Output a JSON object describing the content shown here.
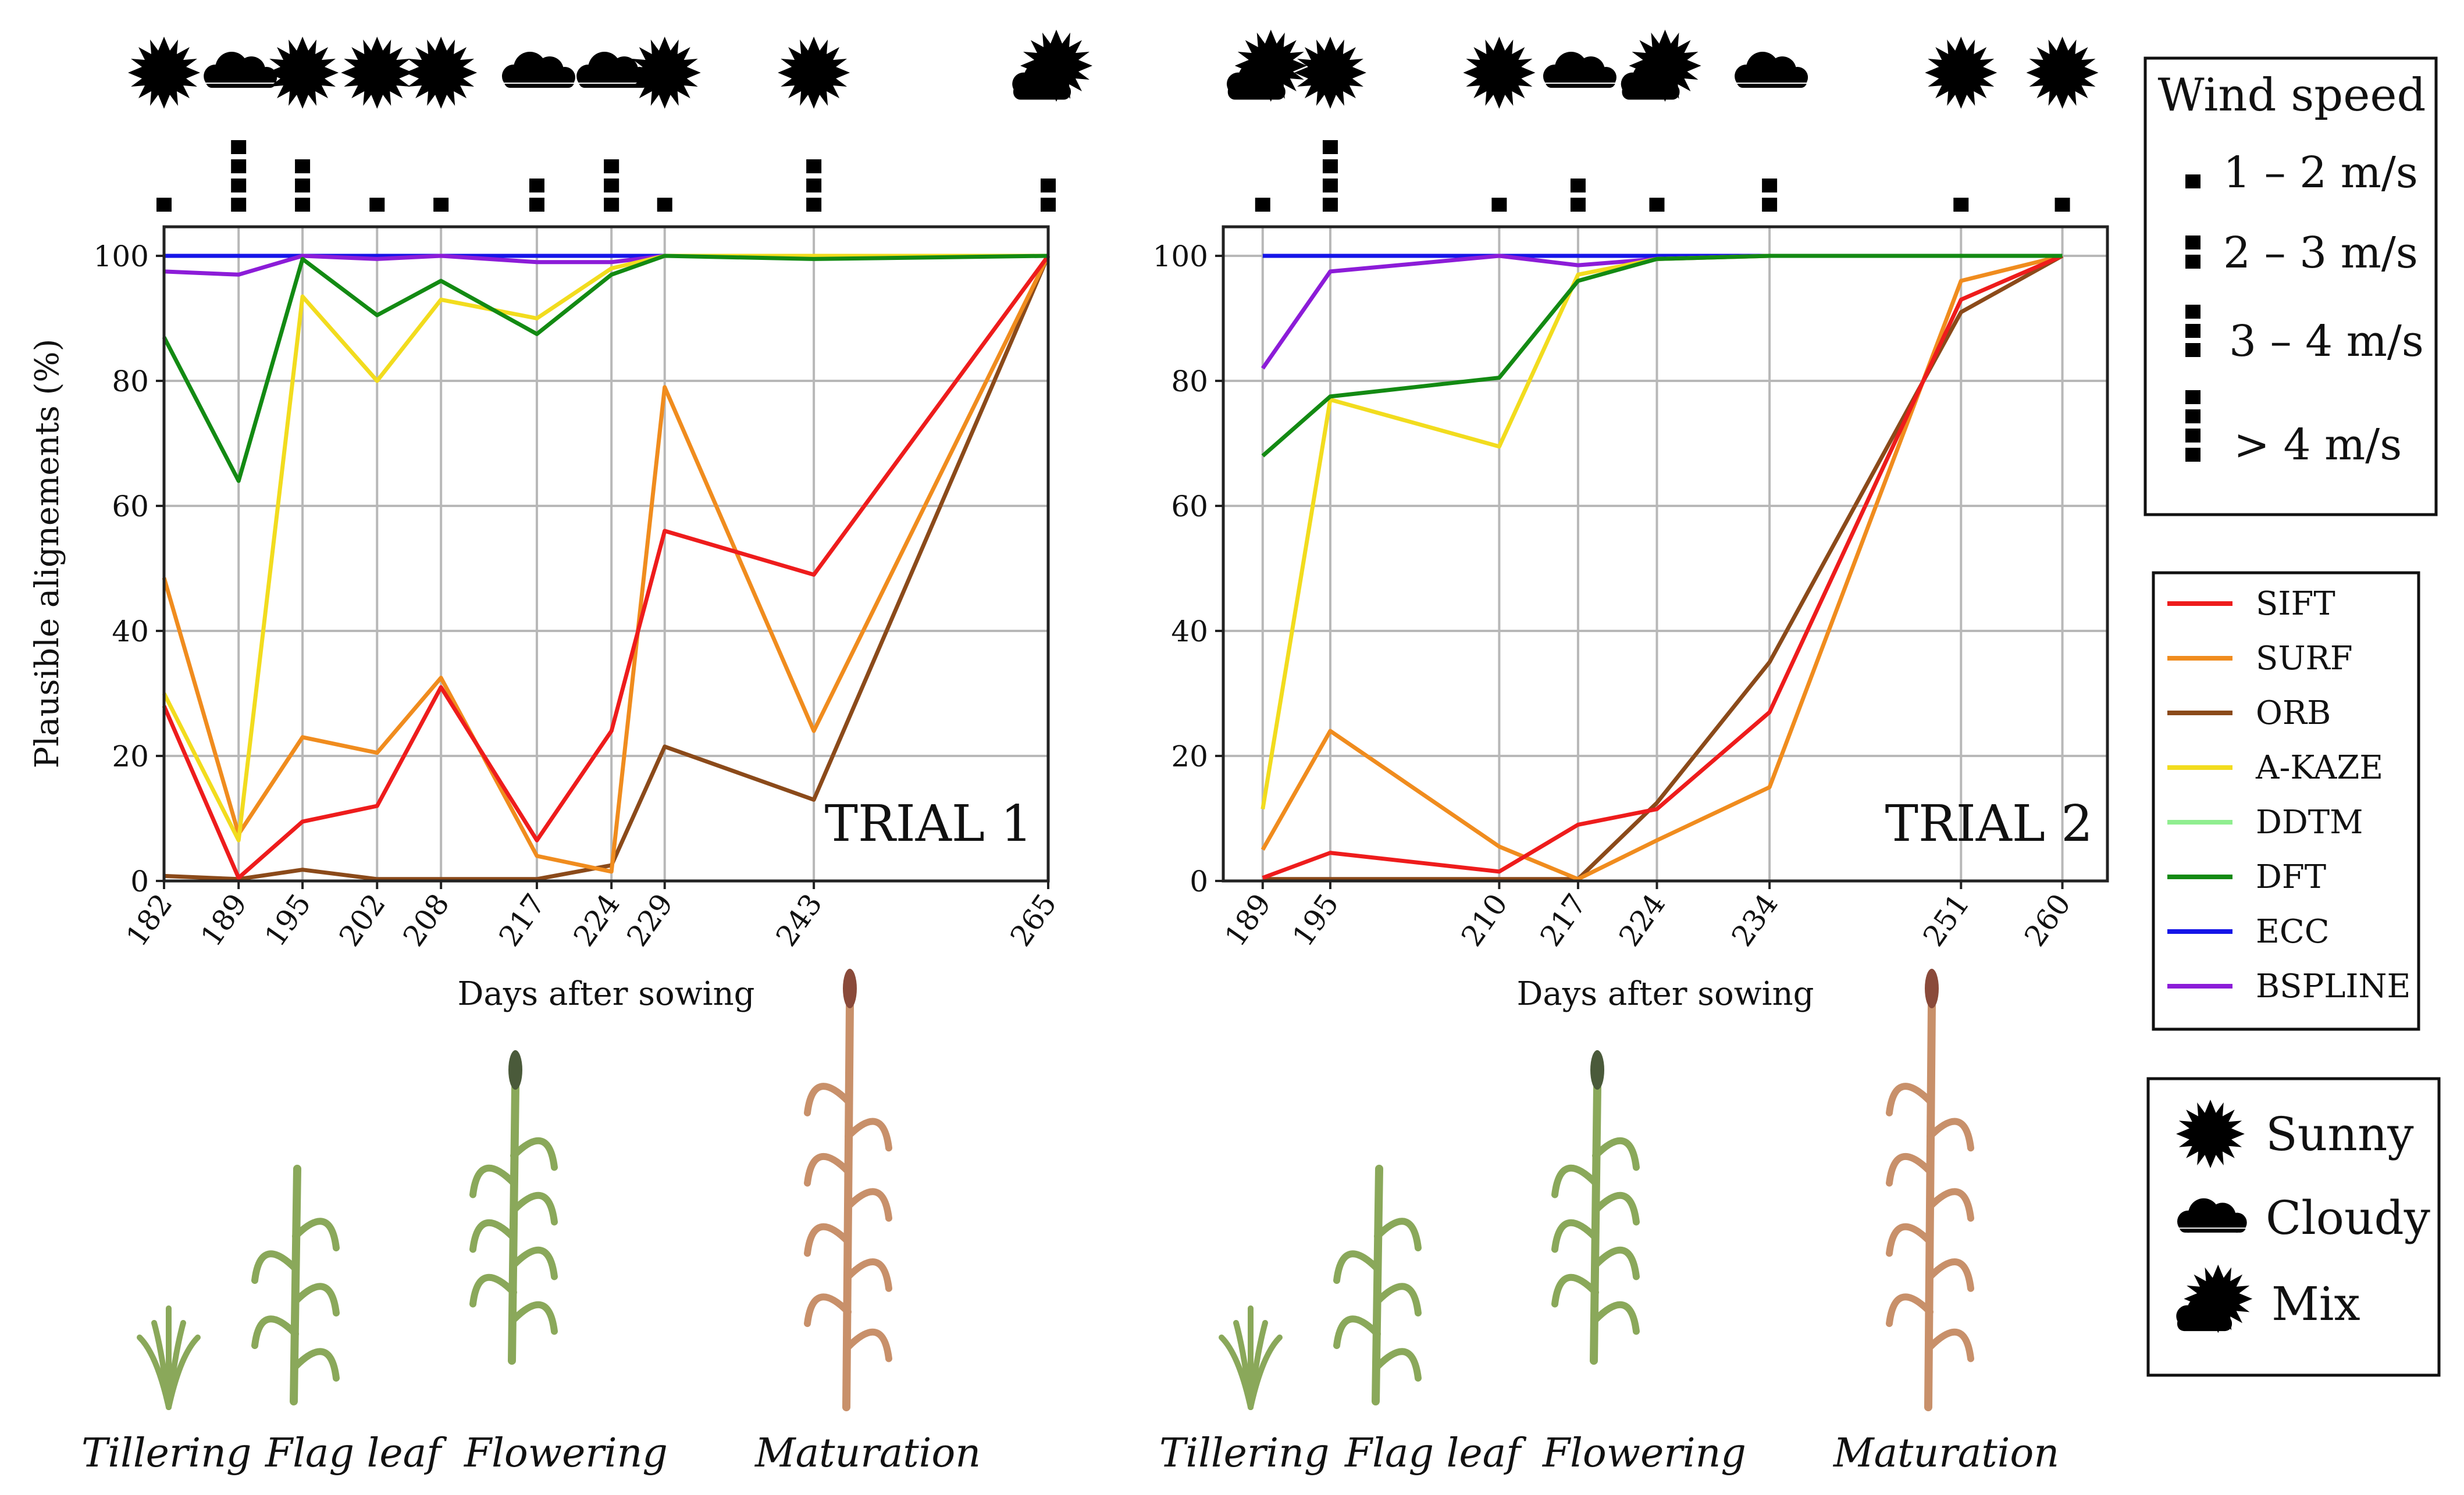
{
  "methods": [
    {
      "name": "SIFT",
      "color": "#ee1c1c"
    },
    {
      "name": "SURF",
      "color": "#f08c1e"
    },
    {
      "name": "ORB",
      "color": "#8b4a1a"
    },
    {
      "name": "A-KAZE",
      "color": "#f2dc1e"
    },
    {
      "name": "DDTM",
      "color": "#90ee90"
    },
    {
      "name": "DFT",
      "color": "#138a13"
    },
    {
      "name": "ECC",
      "color": "#1515e8"
    },
    {
      "name": "BSPLINE",
      "color": "#8c1cd8"
    }
  ],
  "chart_data": [
    {
      "type": "line",
      "title": "TRIAL 1",
      "xlabel": "Days after sowing",
      "ylabel": "Plausible alignements (%)",
      "ylim": [
        0,
        100
      ],
      "yticks": [
        0,
        20,
        40,
        60,
        80,
        100
      ],
      "grid": true,
      "x": [
        182,
        189,
        195,
        202,
        208,
        217,
        224,
        229,
        243,
        265
      ],
      "weather": [
        "sunny",
        "cloudy",
        "sunny",
        "sunny",
        "sunny",
        "cloudy",
        "cloudy",
        "sunny",
        "sunny",
        "mix"
      ],
      "wind_level": [
        1,
        4,
        3,
        1,
        1,
        2,
        3,
        1,
        3,
        2
      ],
      "series": [
        {
          "name": "SIFT",
          "values": [
            28,
            0.5,
            9.5,
            12,
            31,
            6.5,
            24,
            56,
            49,
            100
          ]
        },
        {
          "name": "SURF",
          "values": [
            48.5,
            7.5,
            23,
            20.5,
            32.5,
            4,
            1.5,
            79,
            24,
            100
          ]
        },
        {
          "name": "ORB",
          "values": [
            0.8,
            0.3,
            1.8,
            0.3,
            0.3,
            0.3,
            2.5,
            21.5,
            13,
            100
          ]
        },
        {
          "name": "A-KAZE",
          "values": [
            30,
            6.5,
            93.5,
            80,
            93,
            90,
            98,
            100,
            100,
            100
          ]
        },
        {
          "name": "DDTM",
          "values": [
            100,
            100,
            100,
            100,
            100,
            100,
            100,
            100,
            100,
            100
          ]
        },
        {
          "name": "DFT",
          "values": [
            87,
            64,
            99.5,
            90.5,
            96,
            87.5,
            97,
            100,
            99.5,
            100
          ]
        },
        {
          "name": "ECC",
          "values": [
            100,
            100,
            100,
            100,
            100,
            100,
            100,
            100,
            100,
            100
          ]
        },
        {
          "name": "BSPLINE",
          "values": [
            97.5,
            97,
            100,
            99.5,
            100,
            99,
            99,
            100,
            100,
            100
          ]
        }
      ]
    },
    {
      "type": "line",
      "title": "TRIAL 2",
      "xlabel": "Days after sowing",
      "ylabel": "",
      "ylim": [
        0,
        100
      ],
      "yticks": [
        0,
        20,
        40,
        60,
        80,
        100
      ],
      "grid": true,
      "x": [
        189,
        195,
        210,
        217,
        224,
        234,
        251,
        260
      ],
      "weather": [
        "mix",
        "sunny",
        "sunny",
        "cloudy",
        "mix",
        "cloudy",
        "sunny",
        "sunny"
      ],
      "wind_level": [
        1,
        4,
        1,
        2,
        1,
        2,
        1,
        1
      ],
      "series": [
        {
          "name": "SIFT",
          "values": [
            0.5,
            4.5,
            1.5,
            9,
            11.5,
            27,
            93,
            100
          ]
        },
        {
          "name": "SURF",
          "values": [
            5,
            24,
            5.5,
            0.3,
            6.5,
            15,
            96,
            100
          ]
        },
        {
          "name": "ORB",
          "values": [
            0.3,
            0.3,
            0.3,
            0.3,
            12.5,
            35,
            91,
            100
          ]
        },
        {
          "name": "A-KAZE",
          "values": [
            11.5,
            77,
            69.5,
            97,
            99.5,
            100,
            100,
            100
          ]
        },
        {
          "name": "DDTM",
          "values": [
            100,
            100,
            100,
            100,
            100,
            100,
            100,
            100
          ]
        },
        {
          "name": "DFT",
          "values": [
            68,
            77.5,
            80.5,
            96,
            99.5,
            100,
            100,
            100
          ]
        },
        {
          "name": "ECC",
          "values": [
            100,
            100,
            100,
            100,
            100,
            100,
            100,
            100
          ]
        },
        {
          "name": "BSPLINE",
          "values": [
            82,
            97.5,
            100,
            98.5,
            99.5,
            100,
            100,
            100
          ]
        }
      ]
    }
  ],
  "wind_legend": {
    "title": "Wind speed",
    "items": [
      "1 – 2 m/s",
      "2 – 3 m/s",
      "3 – 4 m/s",
      "> 4 m/s"
    ]
  },
  "weather_legend": {
    "items": [
      {
        "key": "sunny",
        "label": "Sunny"
      },
      {
        "key": "cloudy",
        "label": "Cloudy"
      },
      {
        "key": "mix",
        "label": "Mix"
      }
    ]
  },
  "stages": {
    "labels": [
      "Tillering",
      "Flag leaf",
      "Flowering",
      "Maturation"
    ]
  }
}
